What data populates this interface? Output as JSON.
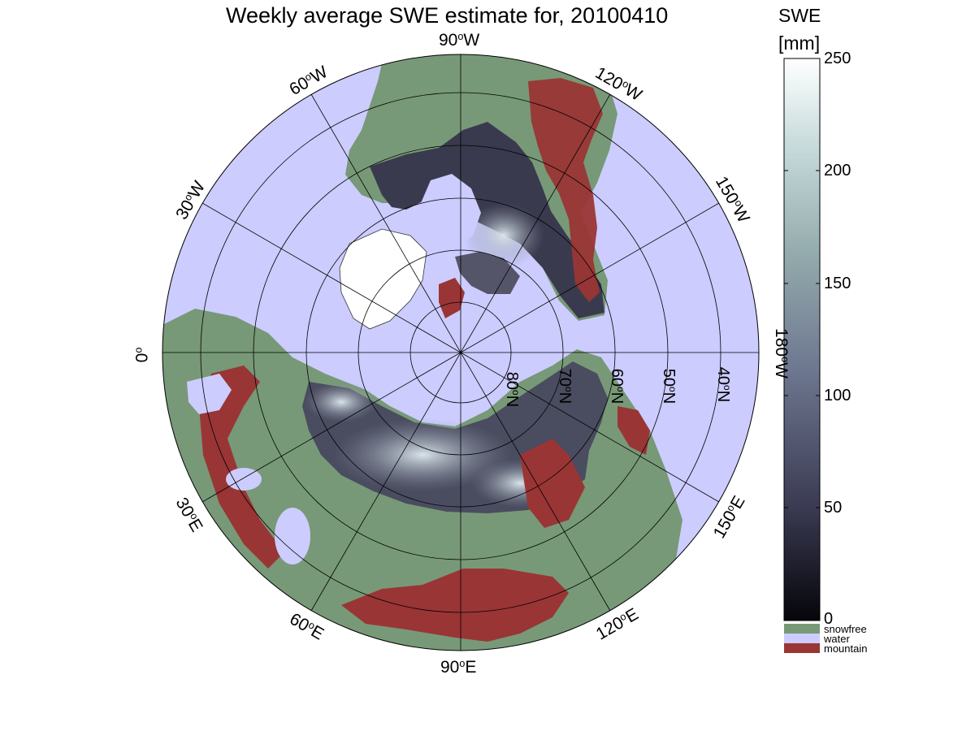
{
  "map": {
    "title": "Weekly average SWE estimate for, 20100410",
    "colors": {
      "water": "#ccccff",
      "snowfree": "#779977",
      "mountain": "#9a3535",
      "snow_low": "#0a0a12",
      "snow_high": "#ffffff"
    },
    "longitude_labels": [
      {
        "deg": "90",
        "sup": "o",
        "hem": "W"
      },
      {
        "deg": "120",
        "sup": "o",
        "hem": "W"
      },
      {
        "deg": "150",
        "sup": "o",
        "hem": "W"
      },
      {
        "deg": "180",
        "sup": "o",
        "hem": "W"
      },
      {
        "deg": "150",
        "sup": "o",
        "hem": "E"
      },
      {
        "deg": "120",
        "sup": "o",
        "hem": "E"
      },
      {
        "deg": "90",
        "sup": "o",
        "hem": "E"
      },
      {
        "deg": "60",
        "sup": "o",
        "hem": "E"
      },
      {
        "deg": "30",
        "sup": "o",
        "hem": "E"
      },
      {
        "deg": "0",
        "sup": "o",
        "hem": ""
      },
      {
        "deg": "30",
        "sup": "o",
        "hem": "W"
      },
      {
        "deg": "60",
        "sup": "o",
        "hem": "W"
      }
    ],
    "latitude_labels": [
      {
        "deg": "80",
        "sup": "o",
        "hem": "N"
      },
      {
        "deg": "70",
        "sup": "o",
        "hem": "N"
      },
      {
        "deg": "60",
        "sup": "o",
        "hem": "N"
      },
      {
        "deg": "50",
        "sup": "o",
        "hem": "N"
      },
      {
        "deg": "40",
        "sup": "o",
        "hem": "N"
      }
    ]
  },
  "colorbar": {
    "title_line1": "SWE",
    "title_line2": "[mm]",
    "ticks": [
      "250",
      "200",
      "150",
      "100",
      "50",
      "0"
    ],
    "range": [
      0,
      250
    ],
    "categories": [
      {
        "label": "snowfree",
        "color": "#779977"
      },
      {
        "label": "water",
        "color": "#ccccff"
      },
      {
        "label": "mountain",
        "color": "#9a3535"
      }
    ]
  }
}
